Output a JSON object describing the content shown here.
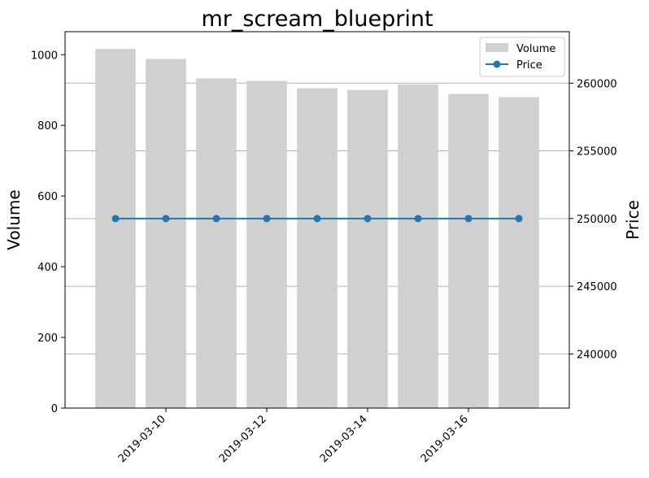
{
  "chart_data": {
    "type": "bar",
    "title": "mr_scream_blueprint",
    "x": [
      "2019-03-09",
      "2019-03-10",
      "2019-03-11",
      "2019-03-12",
      "2019-03-13",
      "2019-03-14",
      "2019-03-15",
      "2019-03-16",
      "2019-03-17"
    ],
    "xtick_labels": [
      "2019-03-10",
      "2019-03-12",
      "2019-03-14",
      "2019-03-16"
    ],
    "xlim": [
      "2019-03-08",
      "2019-03-18"
    ],
    "series": [
      {
        "name": "Volume",
        "kind": "bar",
        "axis": "left",
        "color": "#d0d0d0",
        "values": [
          1016,
          988,
          933,
          926,
          905,
          900,
          916,
          889,
          880
        ]
      },
      {
        "name": "Price",
        "kind": "line",
        "axis": "right",
        "color": "#1f77b4",
        "marker": "circle",
        "values": [
          250000,
          250000,
          250000,
          250000,
          250000,
          250000,
          250000,
          250000,
          250000
        ]
      }
    ],
    "ylabel": "Volume",
    "ylim": [
      0,
      1065
    ],
    "yticks": [
      0,
      200,
      400,
      600,
      800,
      1000
    ],
    "y2label": "Price",
    "y2lim": [
      236000,
      263800
    ],
    "y2ticks": [
      240000,
      245000,
      250000,
      255000,
      260000
    ],
    "grid": "horizontal lines at right-axis ticks",
    "legend": "top-right"
  }
}
